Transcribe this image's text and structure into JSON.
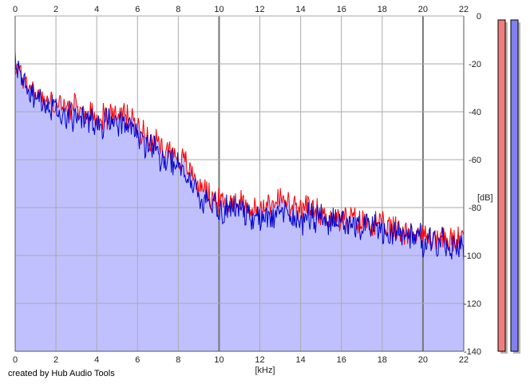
{
  "credit": "created by Hub Audio Tools",
  "colors": {
    "red": "#ff0000",
    "blue": "#0000cc",
    "fill": "#c0c0ff",
    "meter_left": "#f07d7d",
    "meter_right": "#8080f0",
    "grid": "#aaaaaa",
    "grid_major": "#777777"
  },
  "chart_data": {
    "type": "line",
    "xlabel": "[kHz]",
    "ylabel": "[dB]",
    "xlim": [
      0,
      22
    ],
    "ylim": [
      -140,
      0
    ],
    "x_ticks": [
      0,
      2,
      4,
      6,
      8,
      10,
      12,
      14,
      16,
      18,
      20,
      22
    ],
    "y_ticks": [
      0,
      -20,
      -40,
      -60,
      -80,
      -100,
      -120,
      -140
    ],
    "grid": true,
    "x": [
      0,
      0.5,
      1,
      1.5,
      2,
      2.5,
      3,
      3.5,
      4,
      4.5,
      5,
      5.5,
      6,
      6.5,
      7,
      7.5,
      8,
      8.5,
      9,
      9.5,
      10,
      10.5,
      11,
      11.5,
      12,
      12.5,
      13,
      13.5,
      14,
      14.5,
      15,
      15.5,
      16,
      16.5,
      17,
      17.5,
      18,
      18.5,
      19,
      19.5,
      20,
      20.5,
      21,
      21.5,
      22
    ],
    "series": [
      {
        "name": "",
        "color": "#ff0000",
        "values": [
          -21,
          -27,
          -32,
          -35,
          -37,
          -38,
          -39,
          -41,
          -42,
          -42,
          -41,
          -42,
          -46,
          -50,
          -53,
          -55,
          -59,
          -63,
          -70,
          -74,
          -78,
          -78,
          -77,
          -80,
          -82,
          -78,
          -76,
          -80,
          -82,
          -80,
          -83,
          -84,
          -85,
          -85,
          -86,
          -86,
          -88,
          -89,
          -89,
          -90,
          -92,
          -92,
          -93,
          -94,
          -93
        ]
      },
      {
        "name": "",
        "color": "#0000cc",
        "values": [
          -20,
          -30,
          -35,
          -37,
          -39,
          -41,
          -41,
          -43,
          -44,
          -45,
          -44,
          -45,
          -49,
          -54,
          -57,
          -60,
          -63,
          -67,
          -75,
          -80,
          -81,
          -80,
          -81,
          -83,
          -85,
          -83,
          -82,
          -83,
          -85,
          -84,
          -85,
          -86,
          -87,
          -86,
          -88,
          -88,
          -90,
          -91,
          -91,
          -92,
          -94,
          -95,
          -95,
          -96,
          -97
        ]
      }
    ],
    "meters": {
      "left_db": -140,
      "right_db": -140
    }
  }
}
